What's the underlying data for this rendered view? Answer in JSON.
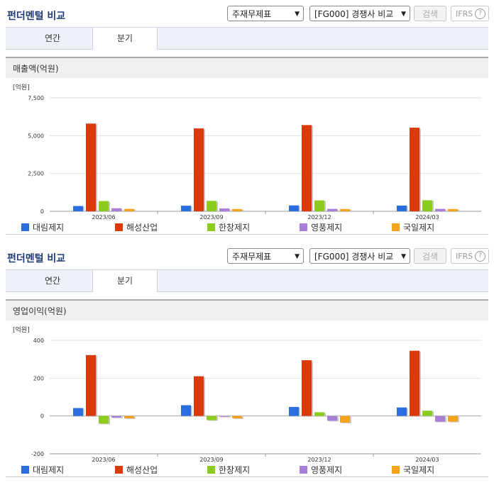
{
  "header": {
    "title": "펀더멘털 비교",
    "select_statement": "주재무제표",
    "select_compare": "[FG000] 경쟁사 비교",
    "search_label": "검색",
    "ifrs_label": "IFRS",
    "help_icon": "?"
  },
  "tabs": [
    {
      "label": "연간",
      "active": false
    },
    {
      "label": "분기",
      "active": true
    }
  ],
  "legend_colors": [
    "#2a6ddc",
    "#dd3a0b",
    "#8ccc1e",
    "#a77fd9",
    "#f5a31a"
  ],
  "charts": [
    {
      "section_title": "매출액(억원)",
      "chart_data": {
        "type": "bar",
        "title": "매출액(억원)",
        "unit_label": "[억원]",
        "categories": [
          "2023/06",
          "2023/09",
          "2023/12",
          "2024/03"
        ],
        "ylim": [
          0,
          7500
        ],
        "yticks": [
          0,
          2500,
          5000,
          7500
        ],
        "ytick_labels": [
          "0",
          "2,500",
          "5,000",
          "7,500"
        ],
        "grid": true,
        "legend_position": "bottom",
        "series": [
          {
            "name": "대림제지",
            "values": [
              350,
              370,
              390,
              380
            ]
          },
          {
            "name": "해성산업",
            "values": [
              5800,
              5480,
              5700,
              5530
            ]
          },
          {
            "name": "한창제지",
            "values": [
              680,
              690,
              720,
              730
            ]
          },
          {
            "name": "영풍제지",
            "values": [
              200,
              190,
              160,
              160
            ]
          },
          {
            "name": "국일제지",
            "values": [
              160,
              150,
              150,
              150
            ]
          }
        ]
      }
    },
    {
      "section_title": "영업이익(억원)",
      "chart_data": {
        "type": "bar",
        "title": "영업이익(억원)",
        "unit_label": "[억원]",
        "categories": [
          "2023/06",
          "2023/09",
          "2023/12",
          "2024/03"
        ],
        "ylim": [
          -200,
          400
        ],
        "yticks": [
          -200,
          0,
          200,
          400
        ],
        "ytick_labels": [
          "-200",
          "0",
          "200",
          "400"
        ],
        "grid": true,
        "legend_position": "bottom",
        "series": [
          {
            "name": "대림제지",
            "values": [
              42,
              57,
              48,
              45
            ]
          },
          {
            "name": "해성산업",
            "values": [
              322,
              210,
              295,
              345
            ]
          },
          {
            "name": "한창제지",
            "values": [
              -40,
              -22,
              20,
              28
            ]
          },
          {
            "name": "영풍제지",
            "values": [
              -8,
              0,
              -25,
              -30
            ]
          },
          {
            "name": "국일제지",
            "values": [
              -12,
              -12,
              -35,
              -30
            ]
          }
        ]
      }
    }
  ]
}
